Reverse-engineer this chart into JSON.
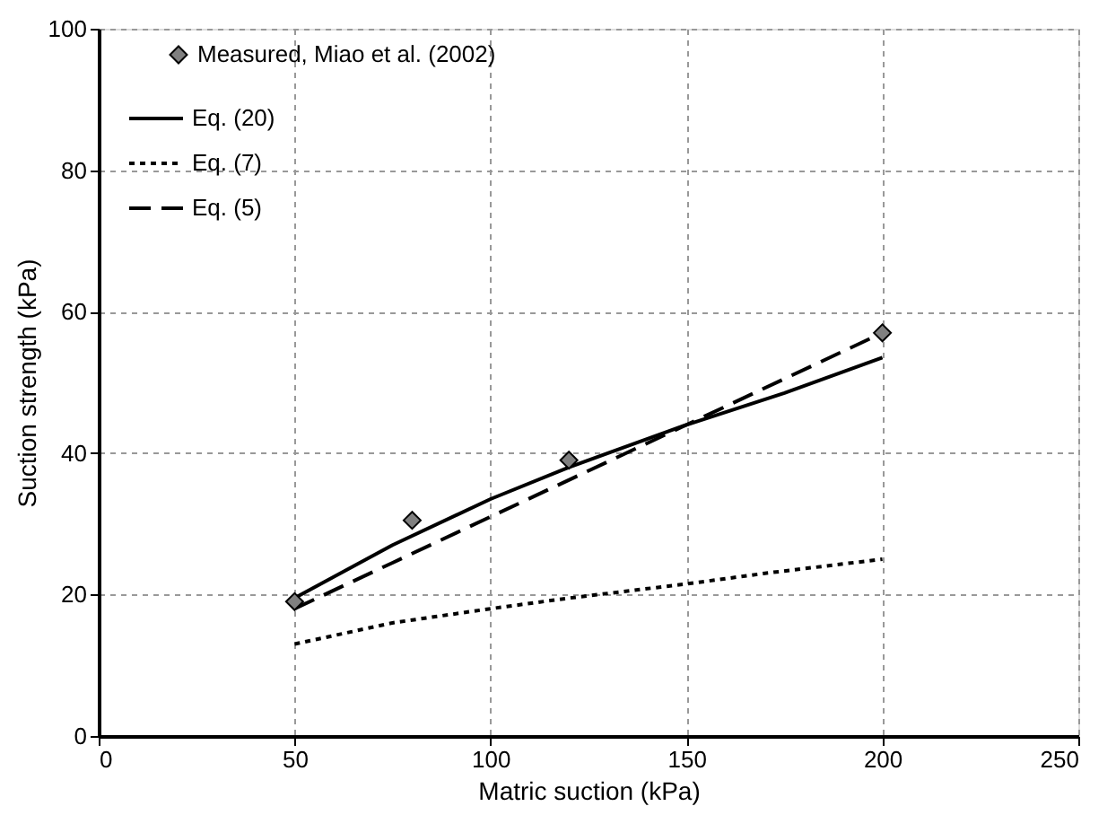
{
  "chart_data": {
    "type": "line",
    "xlabel": "Matric suction (kPa)",
    "ylabel": "Suction strength (kPa)",
    "xlim": [
      0,
      250
    ],
    "xticks": [
      0,
      50,
      100,
      150,
      200,
      250
    ],
    "ylim": [
      0,
      100
    ],
    "yticks": [
      0,
      20,
      40,
      60,
      80,
      100
    ],
    "grid": true,
    "legend": "top left",
    "series": [
      {
        "name": "Measured, Miao et al. (2002)",
        "type": "scatter",
        "marker": "diamond",
        "color": "#808080",
        "x": [
          50,
          80,
          120,
          200
        ],
        "values": [
          19,
          30.5,
          39,
          57
        ]
      },
      {
        "name": "Eq. (20)",
        "line_style": "solid",
        "color": "#000000",
        "x": [
          50,
          75,
          100,
          120,
          150,
          175,
          200
        ],
        "values": [
          19.5,
          27,
          33.5,
          38,
          44,
          48.5,
          53.5
        ]
      },
      {
        "name": "Eq. (7)",
        "line_style": "dotted",
        "color": "#000000",
        "x": [
          50,
          75,
          100,
          120,
          150,
          170,
          200
        ],
        "values": [
          13,
          16,
          18,
          19.5,
          21.5,
          23,
          25
        ]
      },
      {
        "name": "Eq. (5)",
        "line_style": "dashed",
        "color": "#000000",
        "x": [
          50,
          75,
          100,
          125,
          150,
          175,
          200
        ],
        "values": [
          18,
          24.5,
          31,
          37.5,
          44,
          50.5,
          57
        ]
      }
    ]
  }
}
